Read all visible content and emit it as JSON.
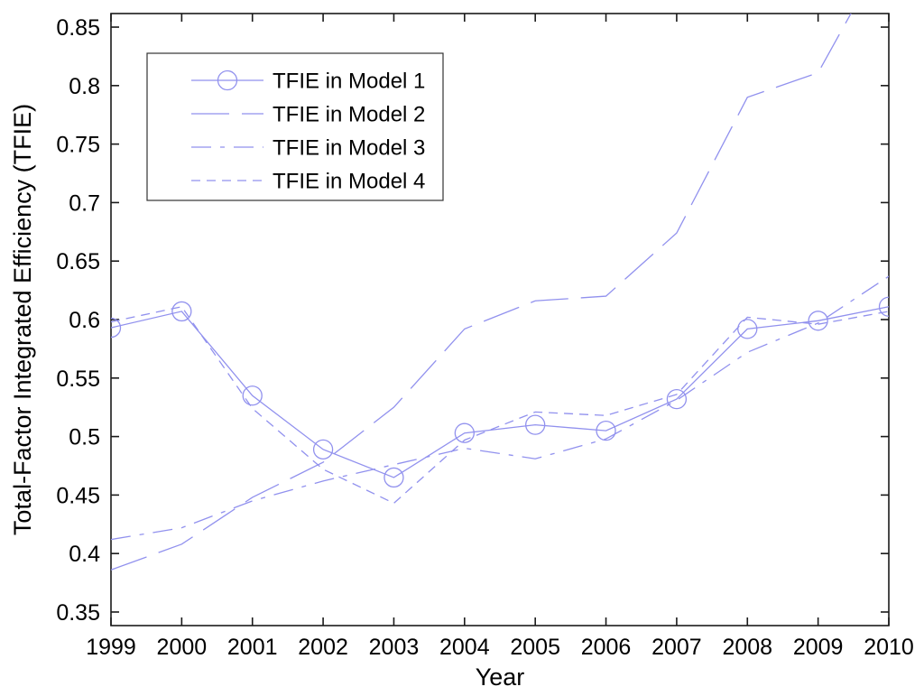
{
  "figure": {
    "background": "#ffffff",
    "line_color": "#9191ee",
    "axis_color": "#1a1a1a"
  },
  "chart_data": {
    "type": "line",
    "x": [
      1999,
      2000,
      2001,
      2002,
      2003,
      2004,
      2005,
      2006,
      2007,
      2008,
      2009,
      2010
    ],
    "x_tick_labels": [
      "1999",
      "2000",
      "2001",
      "2002",
      "2003",
      "2004",
      "2005",
      "2006",
      "2007",
      "2008",
      "2009",
      "2010"
    ],
    "y_ticks": [
      0.35,
      0.4,
      0.45,
      0.5,
      0.55,
      0.6,
      0.65,
      0.7,
      0.75,
      0.8,
      0.85
    ],
    "y_tick_labels": [
      "0.35",
      "0.4",
      "0.45",
      "0.5",
      "0.55",
      "0.6",
      "0.65",
      "0.7",
      "0.75",
      "0.8",
      "0.85"
    ],
    "xlabel": "Year",
    "ylabel": "Total-Factor Integrated Efficiency (TFIE)",
    "xlim": [
      1999,
      2010
    ],
    "ylim": [
      0.3384,
      0.8616
    ],
    "grid": false,
    "legend_position": "top-left-inside",
    "series": [
      {
        "name": "TFIE in Model 1",
        "line_style": "solid",
        "marker": "circle",
        "values": [
          0.593,
          0.607,
          0.535,
          0.489,
          0.465,
          0.503,
          0.51,
          0.505,
          0.532,
          0.592,
          0.599,
          0.611
        ]
      },
      {
        "name": "TFIE in Model 2",
        "line_style": "long-dash",
        "marker": "none",
        "values": [
          0.386,
          0.408,
          0.448,
          0.478,
          0.525,
          0.592,
          0.616,
          0.62,
          0.674,
          0.79,
          0.811,
          0.92
        ]
      },
      {
        "name": "TFIE in Model 3",
        "line_style": "dash-dot",
        "marker": "none",
        "values": [
          0.412,
          0.422,
          0.445,
          0.462,
          0.476,
          0.49,
          0.481,
          0.498,
          0.531,
          0.572,
          0.597,
          0.637
        ]
      },
      {
        "name": "TFIE in Model 4",
        "line_style": "short-dash",
        "marker": "none",
        "values": [
          0.598,
          0.611,
          0.524,
          0.472,
          0.443,
          0.497,
          0.521,
          0.518,
          0.536,
          0.602,
          0.596,
          0.607
        ]
      }
    ]
  }
}
